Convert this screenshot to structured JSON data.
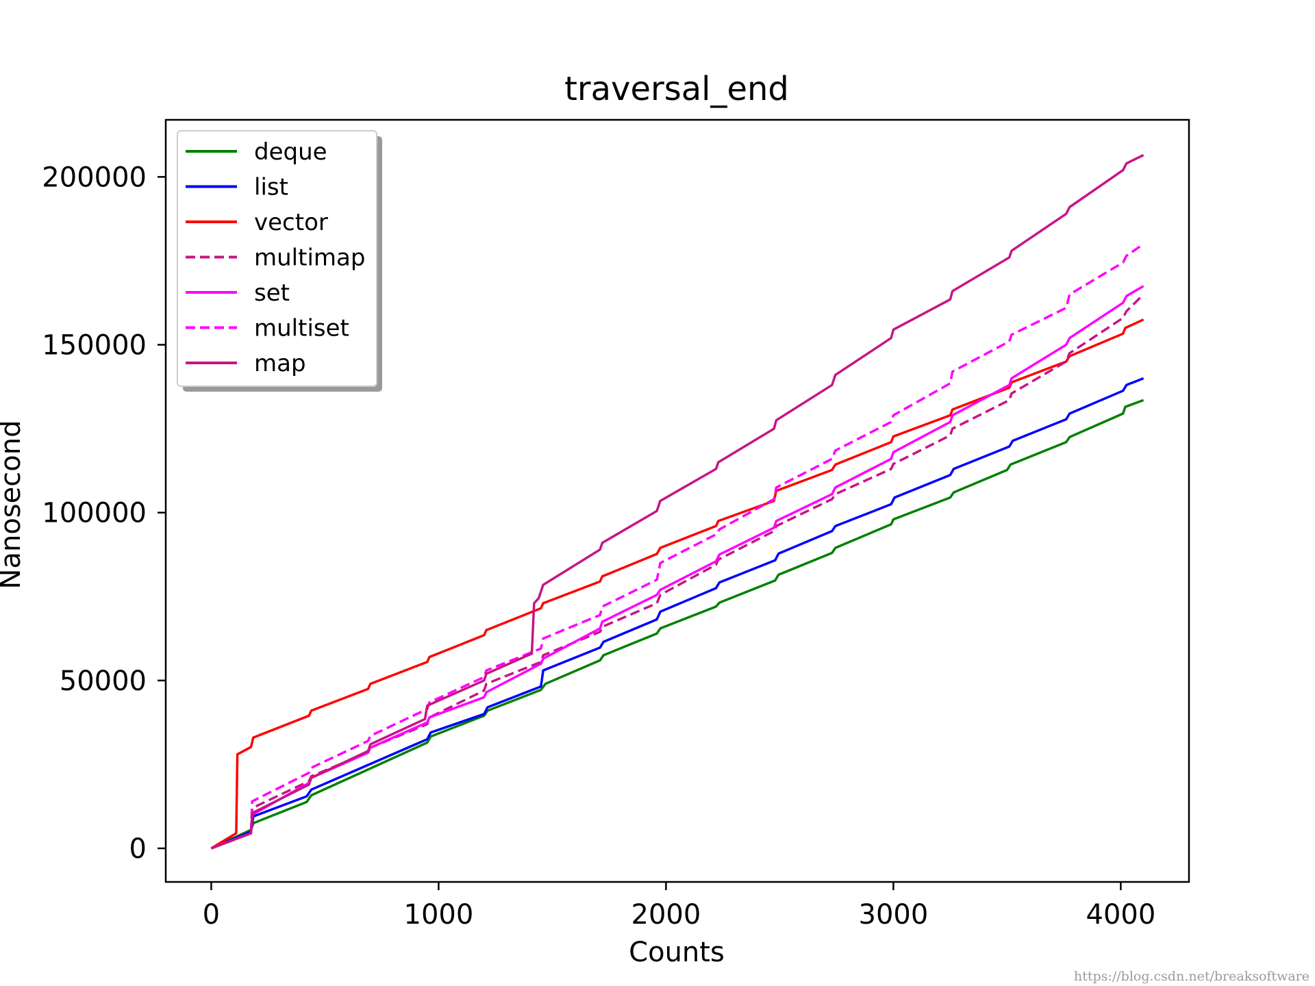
{
  "chart_data": {
    "type": "line",
    "title": "traversal_end",
    "xlabel": "Counts",
    "ylabel": "Nanosecond",
    "xlim": [
      -200,
      4300
    ],
    "ylim": [
      -10000,
      217000
    ],
    "xticks": [
      0,
      1000,
      2000,
      3000,
      4000
    ],
    "yticks": [
      0,
      50000,
      100000,
      150000,
      200000
    ],
    "xtick_labels": [
      "0",
      "1000",
      "2000",
      "3000",
      "4000"
    ],
    "ytick_labels": [
      "0",
      "50000",
      "100000",
      "150000",
      "200000"
    ],
    "grid": false,
    "legend_position": "upper-left",
    "series": [
      {
        "name": "deque",
        "color": "#008000",
        "dash": "solid",
        "x": [
          0,
          175,
          185,
          420,
          440,
          950,
          965,
          1200,
          1215,
          1450,
          1470,
          1710,
          1725,
          1960,
          1975,
          2220,
          2235,
          2480,
          2495,
          2730,
          2745,
          2990,
          3000,
          3250,
          3265,
          3500,
          3515,
          3760,
          3775,
          4010,
          4020,
          4100
        ],
        "y": [
          0,
          5500,
          7500,
          13800,
          15800,
          31500,
          33300,
          39500,
          41000,
          47200,
          49000,
          56000,
          57500,
          64000,
          65500,
          72000,
          73200,
          79800,
          81500,
          88000,
          89500,
          96500,
          98000,
          104500,
          106000,
          112700,
          114300,
          121000,
          122500,
          129500,
          131500,
          133500
        ]
      },
      {
        "name": "list",
        "color": "#0000ff",
        "dash": "solid",
        "x": [
          0,
          175,
          185,
          420,
          440,
          950,
          965,
          1200,
          1215,
          1450,
          1460,
          1710,
          1725,
          1960,
          1975,
          2220,
          2235,
          2480,
          2495,
          2730,
          2745,
          2990,
          3005,
          3250,
          3265,
          3510,
          3525,
          3760,
          3775,
          4010,
          4025,
          4100
        ],
        "y": [
          0,
          5000,
          9500,
          15500,
          17500,
          32500,
          34500,
          40000,
          42000,
          48200,
          53000,
          59800,
          61500,
          68200,
          70500,
          77500,
          79200,
          85800,
          87800,
          94500,
          96000,
          102500,
          104500,
          111200,
          113000,
          119700,
          121400,
          127800,
          129500,
          136300,
          138000,
          140000
        ]
      },
      {
        "name": "vector",
        "color": "#ff0000",
        "dash": "solid",
        "x": [
          0,
          110,
          115,
          175,
          185,
          430,
          440,
          690,
          700,
          950,
          960,
          1200,
          1210,
          1450,
          1460,
          1710,
          1720,
          1960,
          1975,
          2220,
          2230,
          2475,
          2485,
          2730,
          2745,
          2990,
          3000,
          3250,
          3260,
          3510,
          3520,
          3760,
          3775,
          4010,
          4020,
          4100
        ],
        "y": [
          0,
          4500,
          28000,
          30200,
          33000,
          39500,
          41000,
          47500,
          49000,
          55500,
          57000,
          63500,
          65000,
          71500,
          73000,
          79500,
          81000,
          87700,
          89500,
          96000,
          97500,
          103500,
          106500,
          112700,
          114300,
          121000,
          122700,
          129000,
          130700,
          137200,
          138800,
          145000,
          146600,
          153300,
          155000,
          157500
        ]
      },
      {
        "name": "multimap",
        "color": "#c71585",
        "dash": "dashed",
        "x": [
          0,
          175,
          180,
          430,
          440,
          690,
          700,
          950,
          960,
          1200,
          1210,
          1450,
          1460,
          1710,
          1720,
          1960,
          1975,
          2220,
          2230,
          2475,
          2485,
          2730,
          2745,
          2990,
          3000,
          3250,
          3260,
          3510,
          3520,
          3760,
          3775,
          4010,
          4025,
          4100
        ],
        "y": [
          0,
          4500,
          12000,
          20000,
          21500,
          28500,
          30000,
          37000,
          39000,
          47000,
          49000,
          55500,
          57500,
          64500,
          66000,
          73000,
          75500,
          84500,
          86000,
          94500,
          96000,
          104000,
          105500,
          113000,
          114500,
          123000,
          125000,
          133500,
          135500,
          145000,
          147500,
          158000,
          160000,
          165000
        ]
      },
      {
        "name": "set",
        "color": "#ff00ff",
        "dash": "solid",
        "x": [
          0,
          175,
          180,
          430,
          440,
          690,
          700,
          950,
          960,
          1200,
          1210,
          1450,
          1460,
          1710,
          1720,
          1960,
          1975,
          2220,
          2235,
          2475,
          2485,
          2730,
          2745,
          2990,
          3000,
          3250,
          3260,
          3510,
          3520,
          3760,
          3775,
          4010,
          4025,
          4100
        ],
        "y": [
          0,
          4500,
          10000,
          19500,
          21000,
          28500,
          30000,
          37500,
          39000,
          45000,
          46500,
          55000,
          56500,
          65500,
          67500,
          75500,
          77000,
          85500,
          87500,
          95500,
          97500,
          105500,
          107500,
          116000,
          118000,
          127000,
          129000,
          138000,
          140000,
          150000,
          152000,
          162500,
          164500,
          167500
        ]
      },
      {
        "name": "multiset",
        "color": "#ff00ff",
        "dash": "dashed",
        "x": [
          0,
          175,
          180,
          430,
          440,
          690,
          700,
          950,
          960,
          1200,
          1210,
          1450,
          1460,
          1710,
          1720,
          1960,
          1975,
          2220,
          2235,
          2475,
          2485,
          2730,
          2745,
          2990,
          3000,
          3250,
          3260,
          3510,
          3520,
          3760,
          3775,
          4010,
          4025,
          4100
        ],
        "y": [
          0,
          4500,
          14000,
          22500,
          24000,
          32000,
          33500,
          41500,
          43500,
          51000,
          53000,
          59500,
          62500,
          69500,
          72000,
          80000,
          85000,
          93500,
          95000,
          104000,
          107500,
          116000,
          118500,
          127000,
          129000,
          138500,
          142000,
          151000,
          153000,
          161000,
          165000,
          174500,
          176500,
          180000
        ]
      },
      {
        "name": "map",
        "color": "#c71585",
        "dash": "solid",
        "x": [
          0,
          175,
          180,
          430,
          440,
          690,
          700,
          940,
          950,
          1200,
          1210,
          1410,
          1420,
          1440,
          1460,
          1710,
          1720,
          1960,
          1975,
          2220,
          2230,
          2475,
          2485,
          2730,
          2745,
          2990,
          3000,
          3250,
          3260,
          3510,
          3520,
          3760,
          3775,
          4010,
          4025,
          4100
        ],
        "y": [
          0,
          4500,
          10500,
          19000,
          21000,
          29000,
          31000,
          38500,
          42500,
          50000,
          52000,
          58000,
          73000,
          74500,
          78500,
          89000,
          91000,
          100500,
          103500,
          113000,
          115000,
          125000,
          127500,
          138000,
          141000,
          152000,
          154500,
          163500,
          166000,
          176000,
          178000,
          189000,
          191000,
          202000,
          204000,
          206500
        ]
      }
    ]
  },
  "watermark": "https://blog.csdn.net/breaksoftware"
}
